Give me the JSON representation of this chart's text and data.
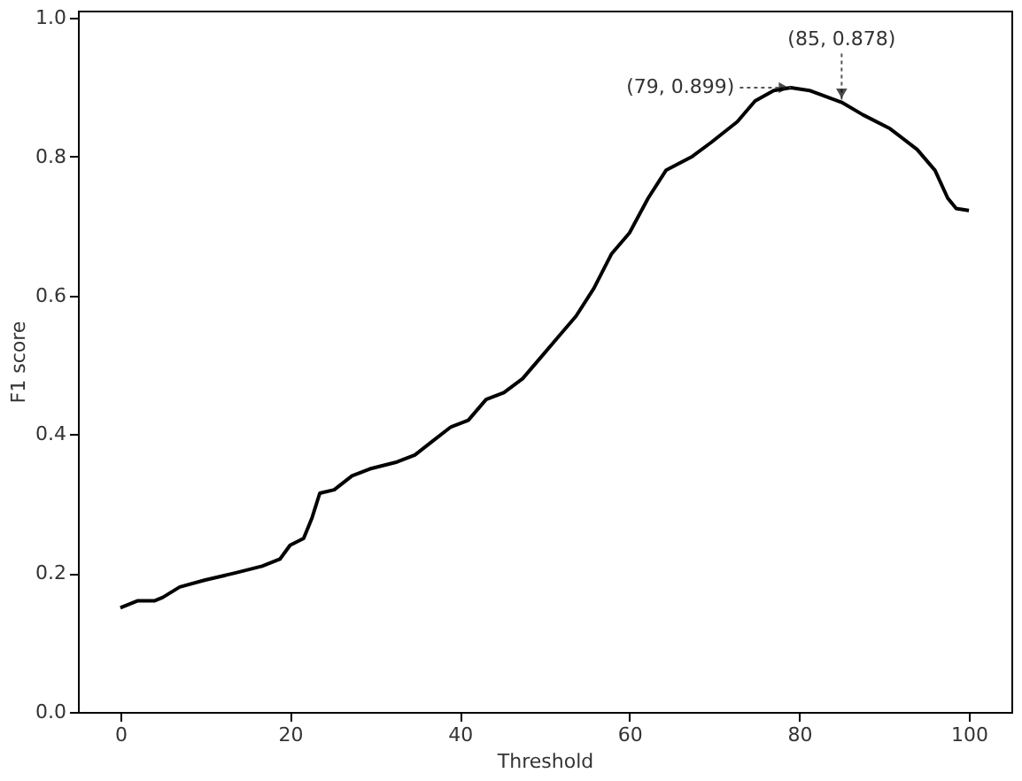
{
  "chart_data": {
    "type": "line",
    "xlabel": "Threshold",
    "ylabel": "F1 score",
    "x": [
      0,
      2,
      4,
      5,
      7,
      10,
      13.5,
      16.7,
      18.8,
      20,
      21.6,
      22.6,
      23.5,
      25.2,
      27.3,
      29.4,
      32.6,
      34.7,
      36.8,
      38.9,
      41,
      43.1,
      45.2,
      47.4,
      49.5,
      51.6,
      53.7,
      55.8,
      57.9,
      60,
      62.2,
      64.3,
      67.4,
      69.6,
      72.7,
      74.8,
      77,
      79,
      81.2,
      85,
      87.5,
      90.7,
      93.9,
      96,
      97.5,
      98.5,
      100
    ],
    "series": [
      {
        "color": "#000000",
        "values": [
          0.15,
          0.16,
          0.16,
          0.165,
          0.18,
          0.19,
          0.2,
          0.21,
          0.22,
          0.24,
          0.25,
          0.28,
          0.315,
          0.32,
          0.34,
          0.35,
          0.36,
          0.37,
          0.39,
          0.41,
          0.42,
          0.45,
          0.46,
          0.48,
          0.51,
          0.54,
          0.57,
          0.61,
          0.66,
          0.69,
          0.74,
          0.78,
          0.8,
          0.82,
          0.85,
          0.88,
          0.895,
          0.899,
          0.895,
          0.878,
          0.86,
          0.84,
          0.81,
          0.78,
          0.74,
          0.725,
          0.722
        ]
      }
    ],
    "annotations": [
      {
        "text": "(79, 0.899)",
        "x": 79,
        "y": 0.899
      },
      {
        "text": "(85, 0.878)",
        "x": 85,
        "y": 0.878
      }
    ],
    "xlim": [
      -5,
      105
    ],
    "ylim": [
      0,
      1.01
    ],
    "xticks": [
      0,
      20,
      40,
      60,
      80,
      100
    ],
    "yticks": [
      {
        "value": 0,
        "label": "0.0"
      },
      {
        "value": 0.2,
        "label": "0.2"
      },
      {
        "value": 0.4,
        "label": "0.4"
      },
      {
        "value": 0.6,
        "label": "0.6"
      },
      {
        "value": 0.8,
        "label": "0.8"
      },
      {
        "value": 1,
        "label": "1.0"
      }
    ],
    "grid": false,
    "marker": "none",
    "line_style": "solid"
  }
}
